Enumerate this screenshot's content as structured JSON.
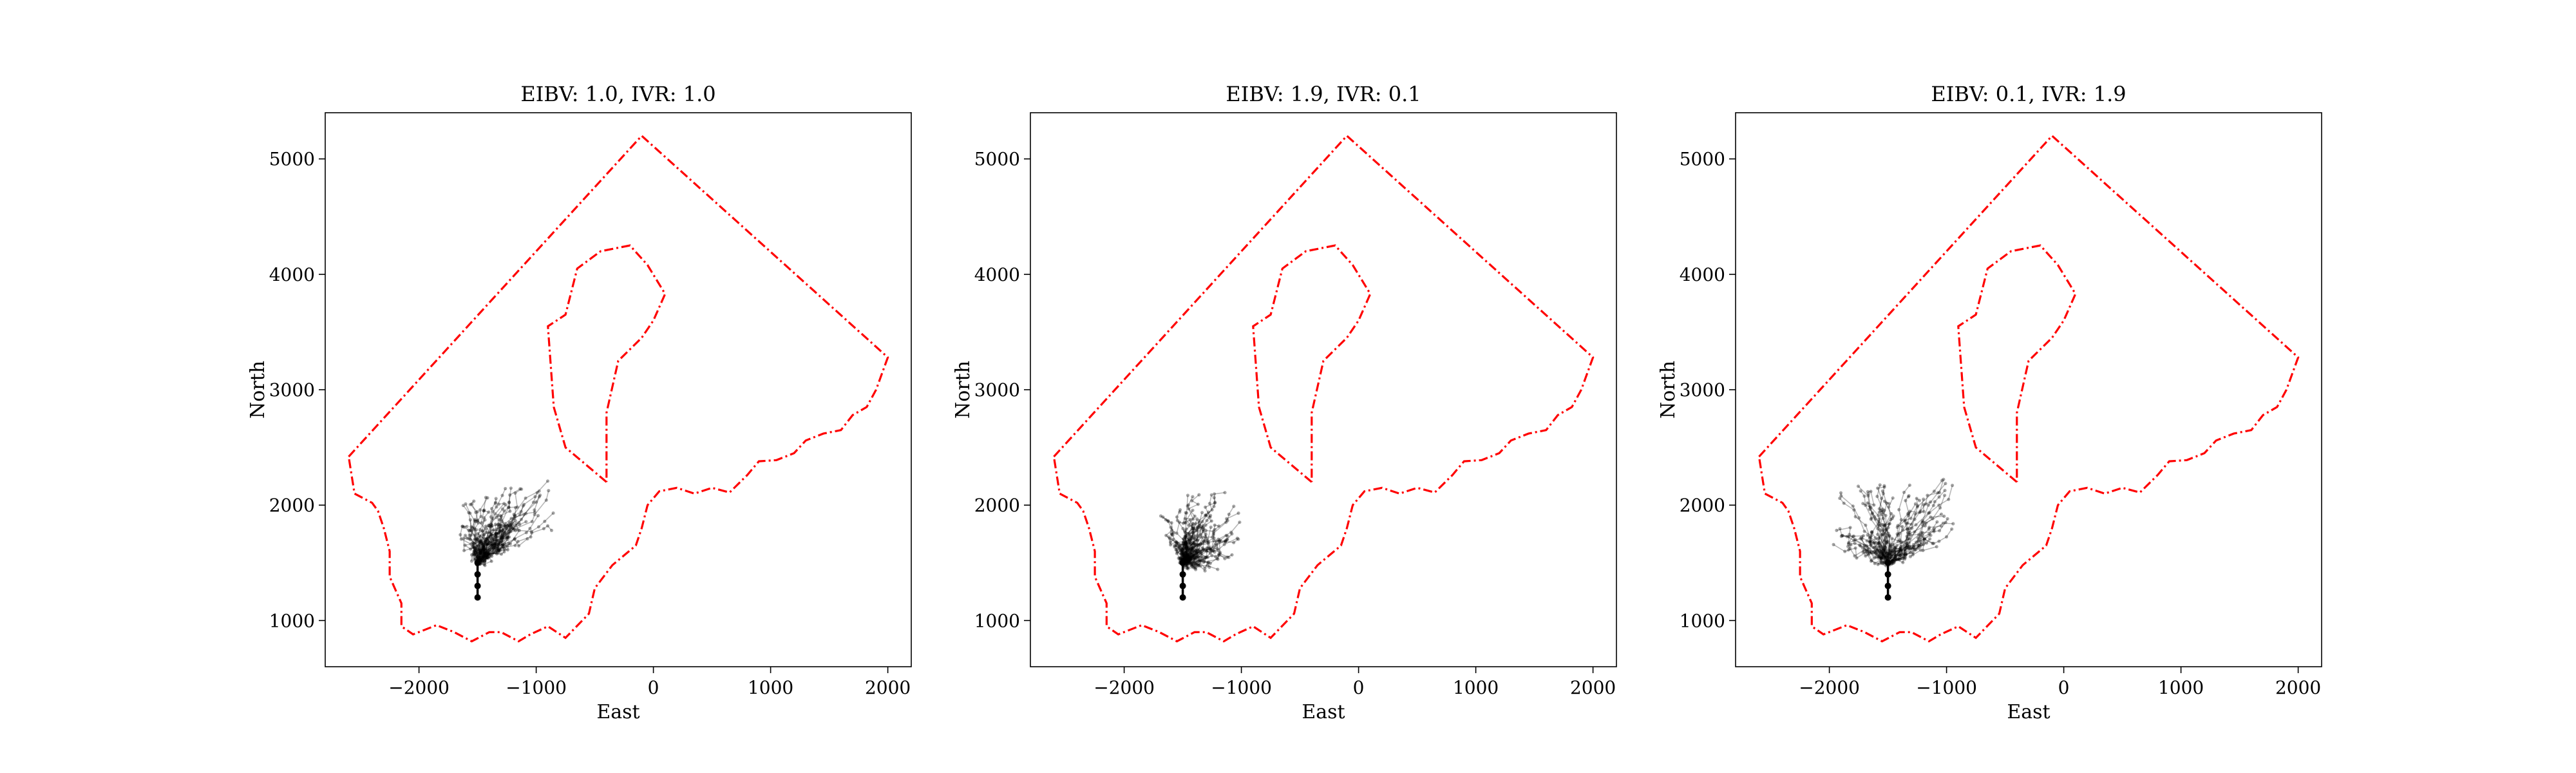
{
  "chart_data": [
    {
      "type": "line",
      "title": "EIBV: 1.0, IVR: 1.0",
      "xlabel": "East",
      "ylabel": "North",
      "xlim": [
        -2800,
        2200
      ],
      "ylim": [
        600,
        5400
      ],
      "xticks": [
        -2000,
        -1000,
        0,
        1000,
        2000
      ],
      "yticks": [
        1000,
        2000,
        3000,
        4000,
        5000
      ],
      "grid": false,
      "boundary_color": "#ff0000",
      "path_color": "#000000",
      "start": [
        -1500,
        1200
      ],
      "trunk": [
        [
          -1500,
          1200
        ],
        [
          -1500,
          1300
        ],
        [
          -1500,
          1400
        ],
        [
          -1500,
          1500
        ]
      ],
      "spread": {
        "cx": -1250,
        "cy": 1900,
        "rx": 420,
        "ry": 230,
        "tilt": 10
      }
    },
    {
      "type": "line",
      "title": "EIBV: 1.9, IVR: 0.1",
      "xlabel": "East",
      "ylabel": "North",
      "xlim": [
        -2800,
        2200
      ],
      "ylim": [
        600,
        5400
      ],
      "xticks": [
        -2000,
        -1000,
        0,
        1000,
        2000
      ],
      "yticks": [
        1000,
        2000,
        3000,
        4000,
        5000
      ],
      "grid": false,
      "boundary_color": "#ff0000",
      "path_color": "#000000",
      "start": [
        -1500,
        1200
      ],
      "trunk": [
        [
          -1500,
          1200
        ],
        [
          -1500,
          1300
        ],
        [
          -1500,
          1400
        ],
        [
          -1500,
          1500
        ]
      ],
      "spread": {
        "cx": -1300,
        "cy": 1800,
        "rx": 300,
        "ry": 330,
        "tilt": 35
      }
    },
    {
      "type": "line",
      "title": "EIBV: 0.1, IVR: 1.9",
      "xlabel": "East",
      "ylabel": "North",
      "xlim": [
        -2800,
        2200
      ],
      "ylim": [
        600,
        5400
      ],
      "xticks": [
        -2000,
        -1000,
        0,
        1000,
        2000
      ],
      "yticks": [
        1000,
        2000,
        3000,
        4000,
        5000
      ],
      "grid": false,
      "boundary_color": "#ff0000",
      "path_color": "#000000",
      "start": [
        -1500,
        1200
      ],
      "trunk": [
        [
          -1500,
          1200
        ],
        [
          -1500,
          1300
        ],
        [
          -1500,
          1400
        ],
        [
          -1500,
          1500
        ]
      ],
      "spread": {
        "cx": -1450,
        "cy": 1900,
        "rx": 520,
        "ry": 330,
        "tilt": 0
      }
    }
  ],
  "outer_boundary": [
    [
      -2600,
      2420
    ],
    [
      -100,
      5200
    ],
    [
      2000,
      3280
    ],
    [
      1900,
      3000
    ],
    [
      1820,
      2850
    ],
    [
      1700,
      2780
    ],
    [
      1600,
      2650
    ],
    [
      1450,
      2620
    ],
    [
      1300,
      2560
    ],
    [
      1200,
      2450
    ],
    [
      1050,
      2390
    ],
    [
      900,
      2380
    ],
    [
      800,
      2260
    ],
    [
      650,
      2110
    ],
    [
      500,
      2150
    ],
    [
      350,
      2100
    ],
    [
      200,
      2150
    ],
    [
      50,
      2120
    ],
    [
      -50,
      2000
    ],
    [
      -100,
      1800
    ],
    [
      -150,
      1650
    ],
    [
      -350,
      1480
    ],
    [
      -500,
      1280
    ],
    [
      -550,
      1060
    ],
    [
      -750,
      850
    ],
    [
      -900,
      950
    ],
    [
      -1050,
      880
    ],
    [
      -1150,
      820
    ],
    [
      -1300,
      900
    ],
    [
      -1400,
      900
    ],
    [
      -1550,
      820
    ],
    [
      -1700,
      900
    ],
    [
      -1850,
      960
    ],
    [
      -2050,
      880
    ],
    [
      -2150,
      950
    ],
    [
      -2150,
      1150
    ],
    [
      -2250,
      1380
    ],
    [
      -2250,
      1600
    ],
    [
      -2300,
      1800
    ],
    [
      -2350,
      1950
    ],
    [
      -2400,
      2020
    ],
    [
      -2550,
      2100
    ],
    [
      -2600,
      2420
    ]
  ],
  "inner_boundary": [
    [
      -400,
      2200
    ],
    [
      -750,
      2500
    ],
    [
      -850,
      2850
    ],
    [
      -900,
      3550
    ],
    [
      -750,
      3650
    ],
    [
      -650,
      4050
    ],
    [
      -450,
      4200
    ],
    [
      -200,
      4250
    ],
    [
      -50,
      4080
    ],
    [
      100,
      3830
    ],
    [
      0,
      3600
    ],
    [
      -100,
      3450
    ],
    [
      -300,
      3250
    ],
    [
      -400,
      2800
    ],
    [
      -400,
      2200
    ]
  ]
}
